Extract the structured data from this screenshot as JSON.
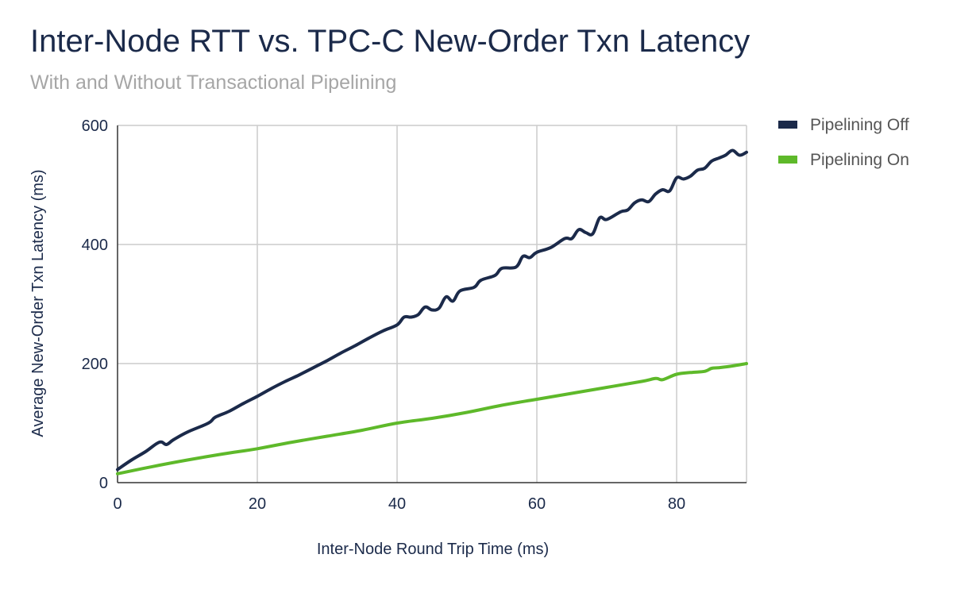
{
  "chart_data": {
    "type": "line",
    "title": "Inter-Node RTT vs. TPC-C New-Order Txn Latency",
    "subtitle": "With and Without Transactional Pipelining",
    "xlabel": "Inter-Node Round Trip Time (ms)",
    "ylabel": "Average New-Order Txn Latency (ms)",
    "xlim": [
      0,
      90
    ],
    "ylim": [
      0,
      600
    ],
    "xticks": [
      "0",
      "20",
      "40",
      "60",
      "80"
    ],
    "yticks": [
      "0",
      "200",
      "400",
      "600"
    ],
    "grid": true,
    "legend_position": "right",
    "series": [
      {
        "name": "Pipelining Off",
        "color": "#1b2a4a",
        "points": [
          [
            0,
            22
          ],
          [
            2,
            38
          ],
          [
            4,
            52
          ],
          [
            6,
            68
          ],
          [
            7,
            64
          ],
          [
            8,
            72
          ],
          [
            10,
            85
          ],
          [
            13,
            100
          ],
          [
            14,
            110
          ],
          [
            16,
            120
          ],
          [
            18,
            133
          ],
          [
            20,
            145
          ],
          [
            22,
            158
          ],
          [
            24,
            170
          ],
          [
            26,
            181
          ],
          [
            28,
            193
          ],
          [
            30,
            205
          ],
          [
            32,
            218
          ],
          [
            34,
            230
          ],
          [
            36,
            243
          ],
          [
            38,
            255
          ],
          [
            40,
            265
          ],
          [
            41,
            278
          ],
          [
            42,
            278
          ],
          [
            43,
            282
          ],
          [
            44,
            295
          ],
          [
            45,
            290
          ],
          [
            46,
            293
          ],
          [
            47,
            312
          ],
          [
            48,
            305
          ],
          [
            49,
            322
          ],
          [
            51,
            328
          ],
          [
            52,
            340
          ],
          [
            54,
            348
          ],
          [
            55,
            360
          ],
          [
            57,
            362
          ],
          [
            58,
            380
          ],
          [
            59,
            378
          ],
          [
            60,
            387
          ],
          [
            62,
            395
          ],
          [
            64,
            410
          ],
          [
            65,
            410
          ],
          [
            66,
            425
          ],
          [
            67,
            420
          ],
          [
            68,
            418
          ],
          [
            69,
            445
          ],
          [
            70,
            442
          ],
          [
            72,
            455
          ],
          [
            73,
            458
          ],
          [
            74,
            470
          ],
          [
            75,
            475
          ],
          [
            76,
            472
          ],
          [
            77,
            485
          ],
          [
            78,
            492
          ],
          [
            79,
            490
          ],
          [
            80,
            512
          ],
          [
            81,
            510
          ],
          [
            82,
            515
          ],
          [
            83,
            525
          ],
          [
            84,
            528
          ],
          [
            85,
            540
          ],
          [
            86,
            545
          ],
          [
            87,
            550
          ],
          [
            88,
            558
          ],
          [
            89,
            550
          ],
          [
            90,
            555
          ]
        ]
      },
      {
        "name": "Pipelining On",
        "color": "#5eb92a",
        "points": [
          [
            0,
            15
          ],
          [
            5,
            27
          ],
          [
            10,
            38
          ],
          [
            15,
            48
          ],
          [
            20,
            57
          ],
          [
            25,
            68
          ],
          [
            30,
            78
          ],
          [
            35,
            88
          ],
          [
            40,
            100
          ],
          [
            45,
            108
          ],
          [
            50,
            118
          ],
          [
            55,
            130
          ],
          [
            60,
            140
          ],
          [
            65,
            150
          ],
          [
            70,
            160
          ],
          [
            75,
            170
          ],
          [
            77,
            175
          ],
          [
            78,
            173
          ],
          [
            80,
            182
          ],
          [
            82,
            185
          ],
          [
            84,
            187
          ],
          [
            85,
            192
          ],
          [
            86,
            193
          ],
          [
            88,
            196
          ],
          [
            90,
            200
          ]
        ]
      }
    ]
  }
}
